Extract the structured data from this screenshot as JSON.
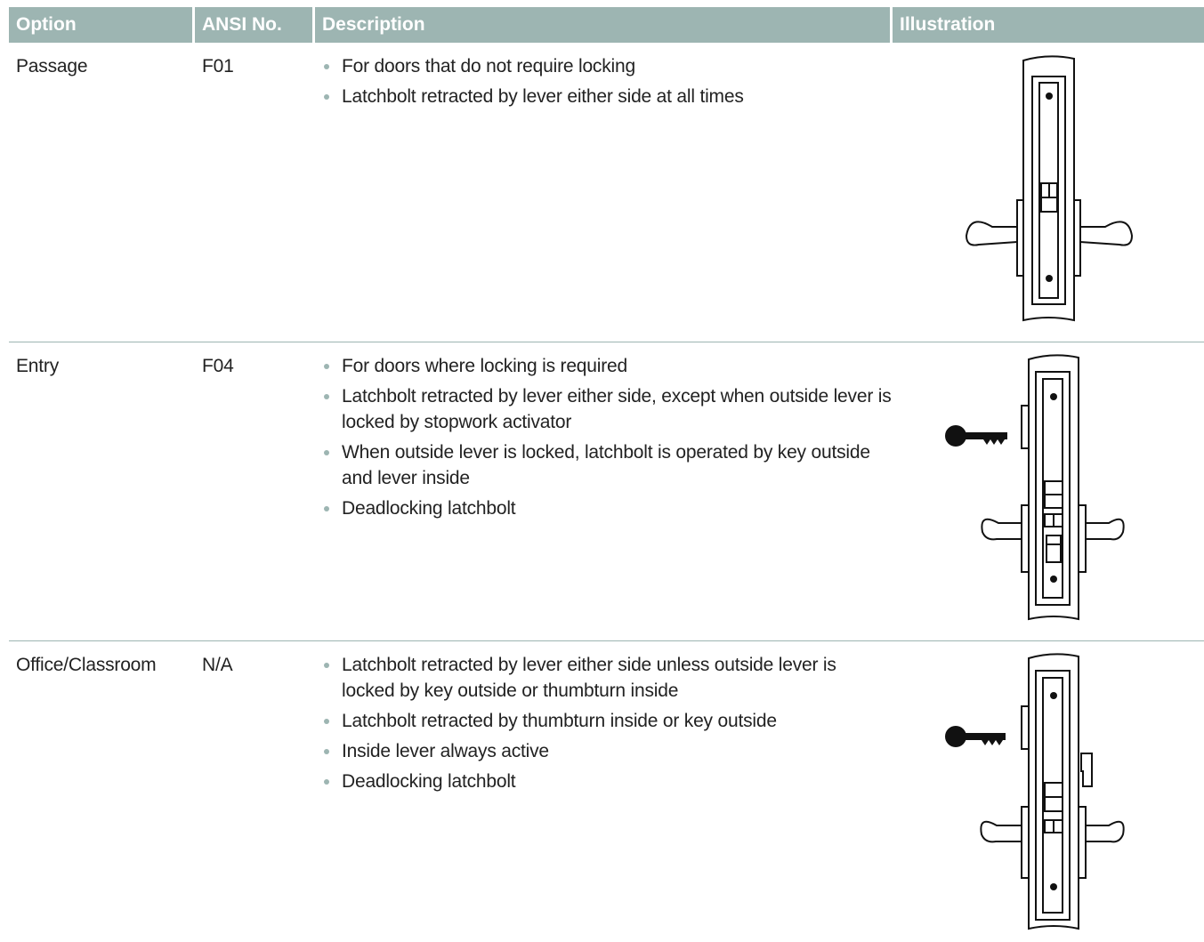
{
  "table": {
    "columns": [
      "Option",
      "ANSI No.",
      "Description",
      "Illustration"
    ],
    "rows": [
      {
        "option": "Passage",
        "ansi": "F01",
        "description": [
          "For doors that do not require locking",
          "Latchbolt retracted by lever either side at all times"
        ]
      },
      {
        "option": "Entry",
        "ansi": "F04",
        "description": [
          "For doors where locking is required",
          "Latchbolt retracted by lever either side, except when outside lever is locked by stopwork activator",
          "When outside lever is locked, latchbolt is operated by key outside and lever inside",
          "Deadlocking latchbolt"
        ]
      },
      {
        "option": "Office/Classroom",
        "ansi": "N/A",
        "description": [
          "Latchbolt retracted by lever either side unless outside lever is locked by key outside or thumbturn inside",
          "Latchbolt retracted by thumbturn inside or key outside",
          "Inside lever always active",
          "Deadlocking latchbolt"
        ]
      }
    ]
  }
}
